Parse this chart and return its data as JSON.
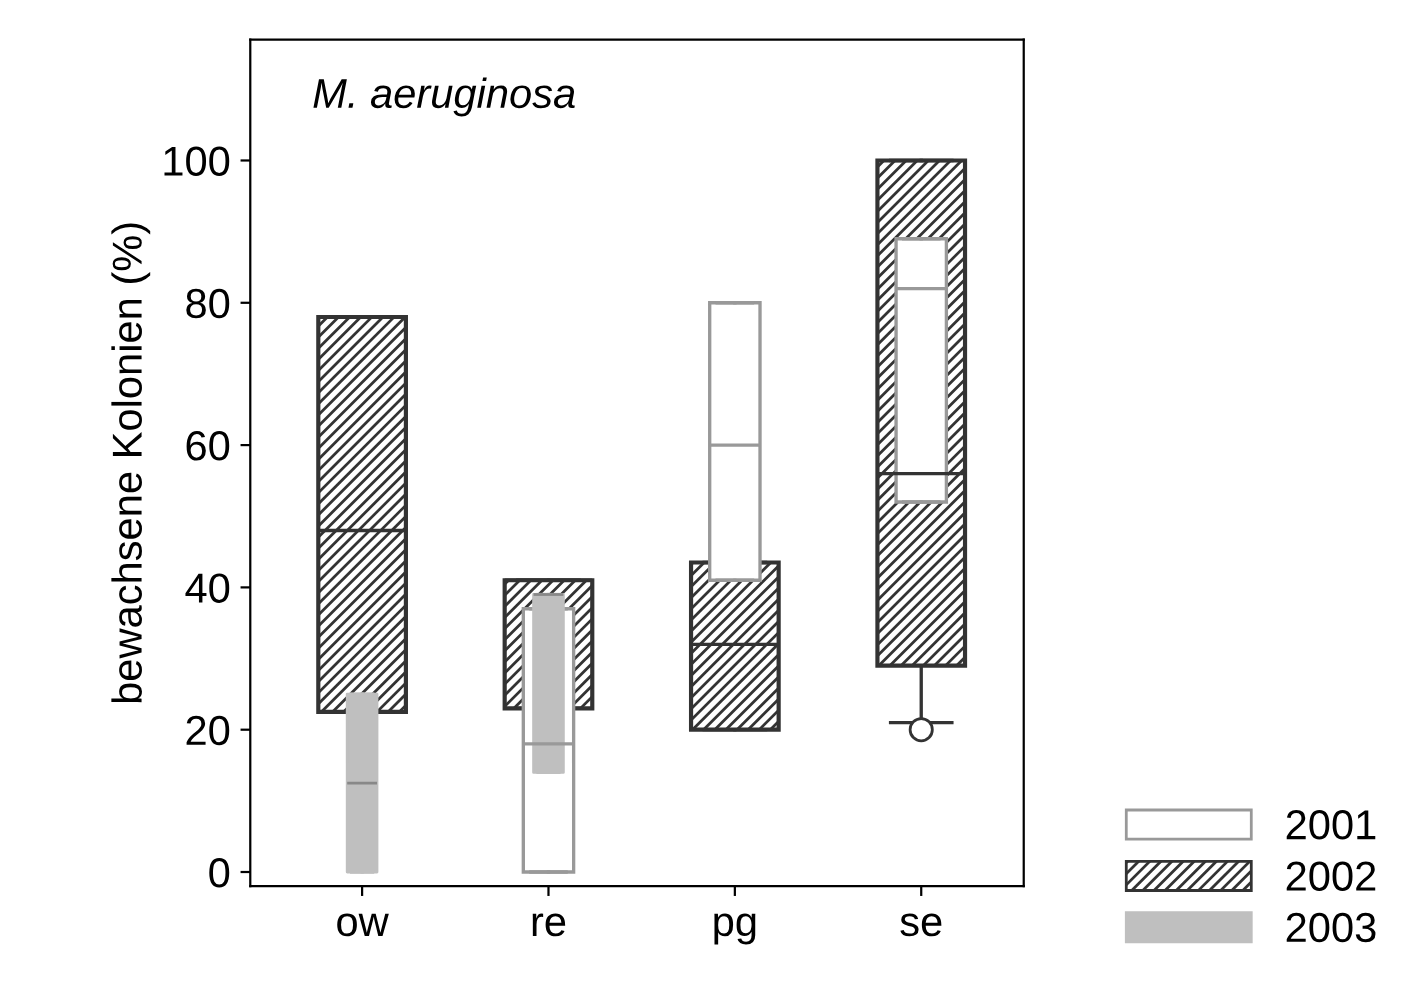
{
  "chart_data": {
    "type": "box",
    "ylabel": "bewachsene Kolonien (%)",
    "annotations": [
      "M. aeruginosa"
    ],
    "categories": [
      "ow",
      "re",
      "pg",
      "se"
    ],
    "ylim": [
      -2,
      117
    ],
    "yticks": [
      0,
      20,
      40,
      60,
      80,
      100
    ],
    "grid": false,
    "legend": "bottom right",
    "series": [
      {
        "name": "2001",
        "color": "#999999",
        "boxes": [
          null,
          {
            "low": 0,
            "q1": 0,
            "median": 18,
            "q3": 37,
            "high": 37
          },
          {
            "low": 41,
            "q1": 41,
            "median": 60,
            "q3": 80,
            "high": 80
          },
          {
            "low": 52,
            "q1": 52,
            "median": 82,
            "q3": 89,
            "high": 89
          }
        ]
      },
      {
        "name": "2002",
        "color": "#333333",
        "boxes": [
          {
            "low": 22.5,
            "q1": 22.5,
            "median": 48,
            "q3": 78,
            "high": 78
          },
          {
            "low": 23,
            "q1": 23,
            "median": 41,
            "q3": 41,
            "high": 41
          },
          {
            "low": 20,
            "q1": 20,
            "median": 32,
            "q3": 43.5,
            "high": 43.5
          },
          {
            "low": 21,
            "q1": 29,
            "median": 56,
            "q3": 100,
            "high": 100,
            "outliers": [
              20
            ]
          }
        ]
      },
      {
        "name": "2003",
        "color": "#bfbfbf",
        "boxes": [
          {
            "low": 0,
            "q1": 0,
            "median": 12.5,
            "q3": 25,
            "high": 25
          },
          {
            "low": 14,
            "q1": 14,
            "median": 39,
            "q3": 39,
            "high": 39
          },
          null,
          null
        ]
      }
    ]
  }
}
